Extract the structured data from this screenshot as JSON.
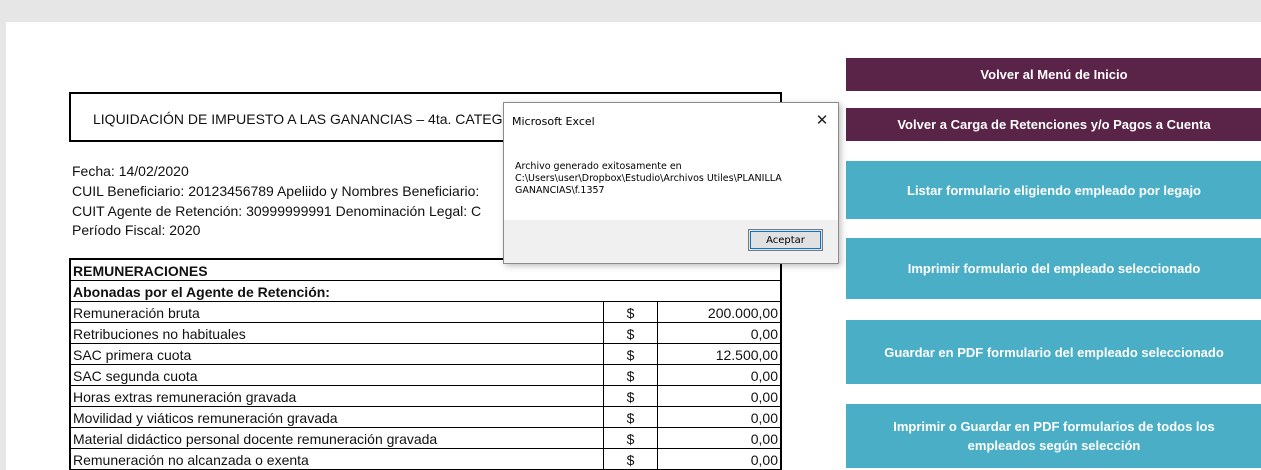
{
  "document": {
    "title": "LIQUIDACIÓN DE IMPUESTO A LAS GANANCIAS – 4ta. CATEG",
    "info_lines": [
      "Fecha: 14/02/2020",
      "CUIL Beneficiario: 20123456789   Apeliido y Nombres Beneficiario:",
      "CUIT Agente de Retención: 30999999991   Denominación Legal: C",
      "Período Fiscal:  2020"
    ],
    "section_header": "REMUNERACIONES",
    "subsection_header": "Abonadas por el Agente de Retención:",
    "currency": "$",
    "rows": [
      {
        "label": "Remuneración bruta",
        "value": "200.000,00"
      },
      {
        "label": "Retribuciones no habituales",
        "value": "0,00"
      },
      {
        "label": "SAC primera cuota",
        "value": "12.500,00"
      },
      {
        "label": "SAC segunda cuota",
        "value": "0,00"
      },
      {
        "label": "Horas extras remuneración gravada",
        "value": "0,00"
      },
      {
        "label": "Movilidad y viáticos remuneración gravada",
        "value": "0,00"
      },
      {
        "label": "Material didáctico personal docente remuneración gravada",
        "value": "0,00"
      },
      {
        "label": "Remuneración no alcanzada o exenta",
        "value": "0,00"
      }
    ]
  },
  "buttons": {
    "menu": "Volver al Menú de Inicio",
    "carga": "Volver a Carga de Retenciones y/o Pagos a Cuenta",
    "listar": "Listar formulario eligiendo empleado por legajo",
    "imprimir": "Imprimir formulario del empleado seleccionado",
    "guardar_pdf": "Guardar en PDF formulario del empleado seleccionado",
    "imprimir_todos": "Imprimir o Guardar en PDF formularios de todos los empleados según selección"
  },
  "dialog": {
    "title": "Microsoft Excel",
    "close": "✕",
    "message": "Archivo generado exitosamente en\nC:\\Users\\user\\Dropbox\\Estudio\\Archivos Utiles\\PLANILLA GANANCIAS\\f.1357",
    "ok_label": "Aceptar"
  },
  "colors": {
    "purple_button": "#5a2448",
    "teal_button": "#4aafc6"
  }
}
